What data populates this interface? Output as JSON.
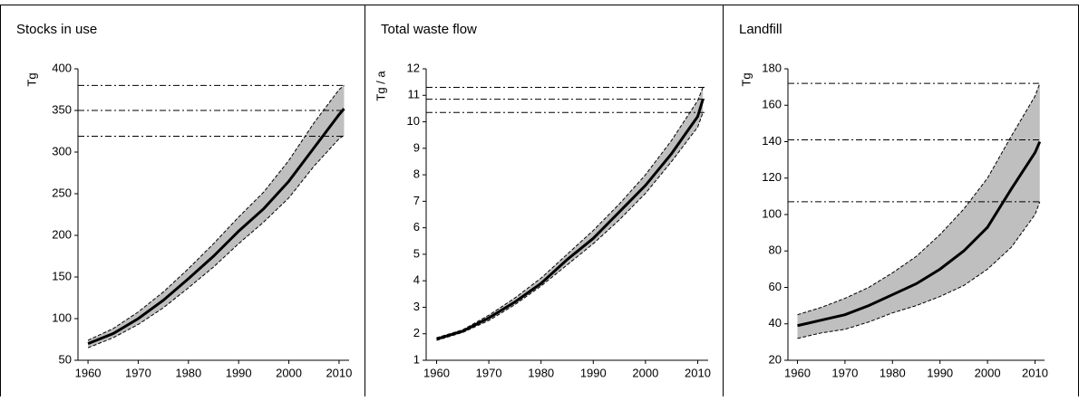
{
  "chart_data": [
    {
      "type": "line",
      "title": "Stocks in use",
      "y_label": "Tg",
      "x": [
        1960,
        1965,
        1970,
        1975,
        1980,
        1985,
        1990,
        1995,
        2000,
        2005,
        2010,
        2011
      ],
      "xlim": [
        1958,
        2012
      ],
      "xticks": [
        1960,
        1970,
        1980,
        1990,
        2000,
        2010
      ],
      "ylim": [
        50,
        400
      ],
      "yticks": [
        50,
        100,
        150,
        200,
        250,
        300,
        350,
        400
      ],
      "band_color": "#bfbfbf",
      "series": [
        {
          "color": "#000000",
          "style": "solid",
          "values": [
            70,
            82,
            100,
            122,
            148,
            175,
            205,
            232,
            265,
            305,
            345,
            352
          ]
        },
        {
          "color": "#000000",
          "style": "dashed",
          "values": [
            74,
            88,
            108,
            132,
            160,
            190,
            222,
            252,
            290,
            335,
            375,
            380
          ]
        },
        {
          "color": "#000000",
          "style": "dashed",
          "values": [
            65,
            77,
            93,
            113,
            137,
            162,
            190,
            216,
            245,
            283,
            316,
            320
          ]
        }
      ],
      "hlines": [
        380,
        350,
        319
      ]
    },
    {
      "type": "line",
      "title": "Total waste flow",
      "y_label": "Tg / a",
      "x": [
        1960,
        1965,
        1970,
        1975,
        1980,
        1985,
        1990,
        1995,
        2000,
        2005,
        2010,
        2011
      ],
      "xlim": [
        1958,
        2012
      ],
      "xticks": [
        1960,
        1970,
        1980,
        1990,
        2000,
        2010
      ],
      "ylim": [
        1,
        12
      ],
      "yticks": [
        1,
        2,
        3,
        4,
        5,
        6,
        7,
        8,
        9,
        10,
        11,
        12
      ],
      "band_color": "#bfbfbf",
      "series": [
        {
          "color": "#000000",
          "style": "solid",
          "values": [
            1.8,
            2.1,
            2.6,
            3.2,
            3.9,
            4.8,
            5.6,
            6.6,
            7.6,
            8.8,
            10.2,
            10.85
          ]
        },
        {
          "color": "#000000",
          "style": "dashed",
          "values": [
            1.85,
            2.15,
            2.7,
            3.35,
            4.1,
            5.0,
            5.9,
            6.9,
            8.0,
            9.3,
            10.8,
            11.3
          ]
        },
        {
          "color": "#000000",
          "style": "dashed",
          "values": [
            1.75,
            2.05,
            2.5,
            3.1,
            3.8,
            4.6,
            5.4,
            6.3,
            7.3,
            8.5,
            9.8,
            10.35
          ]
        }
      ],
      "hlines": [
        11.3,
        10.85,
        10.35
      ]
    },
    {
      "type": "line",
      "title": "Landfill",
      "y_label": "Tg",
      "x": [
        1960,
        1965,
        1970,
        1975,
        1980,
        1985,
        1990,
        1995,
        2000,
        2005,
        2010,
        2011
      ],
      "xlim": [
        1958,
        2012
      ],
      "xticks": [
        1960,
        1970,
        1980,
        1990,
        2000,
        2010
      ],
      "ylim": [
        20,
        180
      ],
      "yticks": [
        20,
        40,
        60,
        80,
        100,
        120,
        140,
        160,
        180
      ],
      "band_color": "#bfbfbf",
      "series": [
        {
          "color": "#000000",
          "style": "solid",
          "values": [
            39,
            42,
            45,
            50,
            56,
            62,
            70,
            80,
            93,
            114,
            134,
            140
          ]
        },
        {
          "color": "#000000",
          "style": "dashed",
          "values": [
            45,
            49,
            54,
            60,
            68,
            77,
            89,
            103,
            120,
            143,
            165,
            172
          ]
        },
        {
          "color": "#000000",
          "style": "dashed",
          "values": [
            32,
            35,
            37,
            41,
            46,
            50,
            55,
            61,
            70,
            82,
            100,
            107
          ]
        }
      ],
      "hlines": [
        172,
        141,
        107
      ]
    }
  ]
}
